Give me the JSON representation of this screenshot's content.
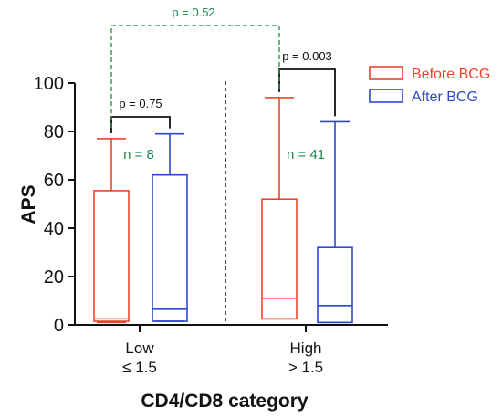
{
  "chart_data": {
    "type": "box",
    "ylabel": "APS",
    "xlabel": "CD4/CD8 category",
    "ylim": [
      0,
      100
    ],
    "yticks": [
      0,
      20,
      40,
      60,
      80,
      100
    ],
    "categories": [
      {
        "line1": "Low",
        "line2": "≤ 1.5"
      },
      {
        "line1": "High",
        "line2": "> 1.5"
      }
    ],
    "series": [
      {
        "name": "Before BCG",
        "color": "#e8452c",
        "boxes": [
          {
            "min": 1,
            "q1": 1.5,
            "median": 2.5,
            "q3": 55.5,
            "max": 77
          },
          {
            "min": 2.5,
            "q1": 2.5,
            "median": 11,
            "q3": 52,
            "max": 94
          }
        ]
      },
      {
        "name": "After BCG",
        "color": "#2f47c8",
        "boxes": [
          {
            "min": 1.5,
            "q1": 1.5,
            "median": 6.5,
            "q3": 62,
            "max": 79
          },
          {
            "min": 1,
            "q1": 1,
            "median": 8,
            "q3": 32,
            "max": 84
          }
        ]
      }
    ],
    "n_labels": [
      "n = 8",
      "n = 41"
    ],
    "comparisons": {
      "within": [
        "p = 0.75",
        "p = 0.003"
      ],
      "between": "p = 0.52"
    },
    "legend_position": "top-right",
    "annotation_color": "#1f8a4c"
  }
}
